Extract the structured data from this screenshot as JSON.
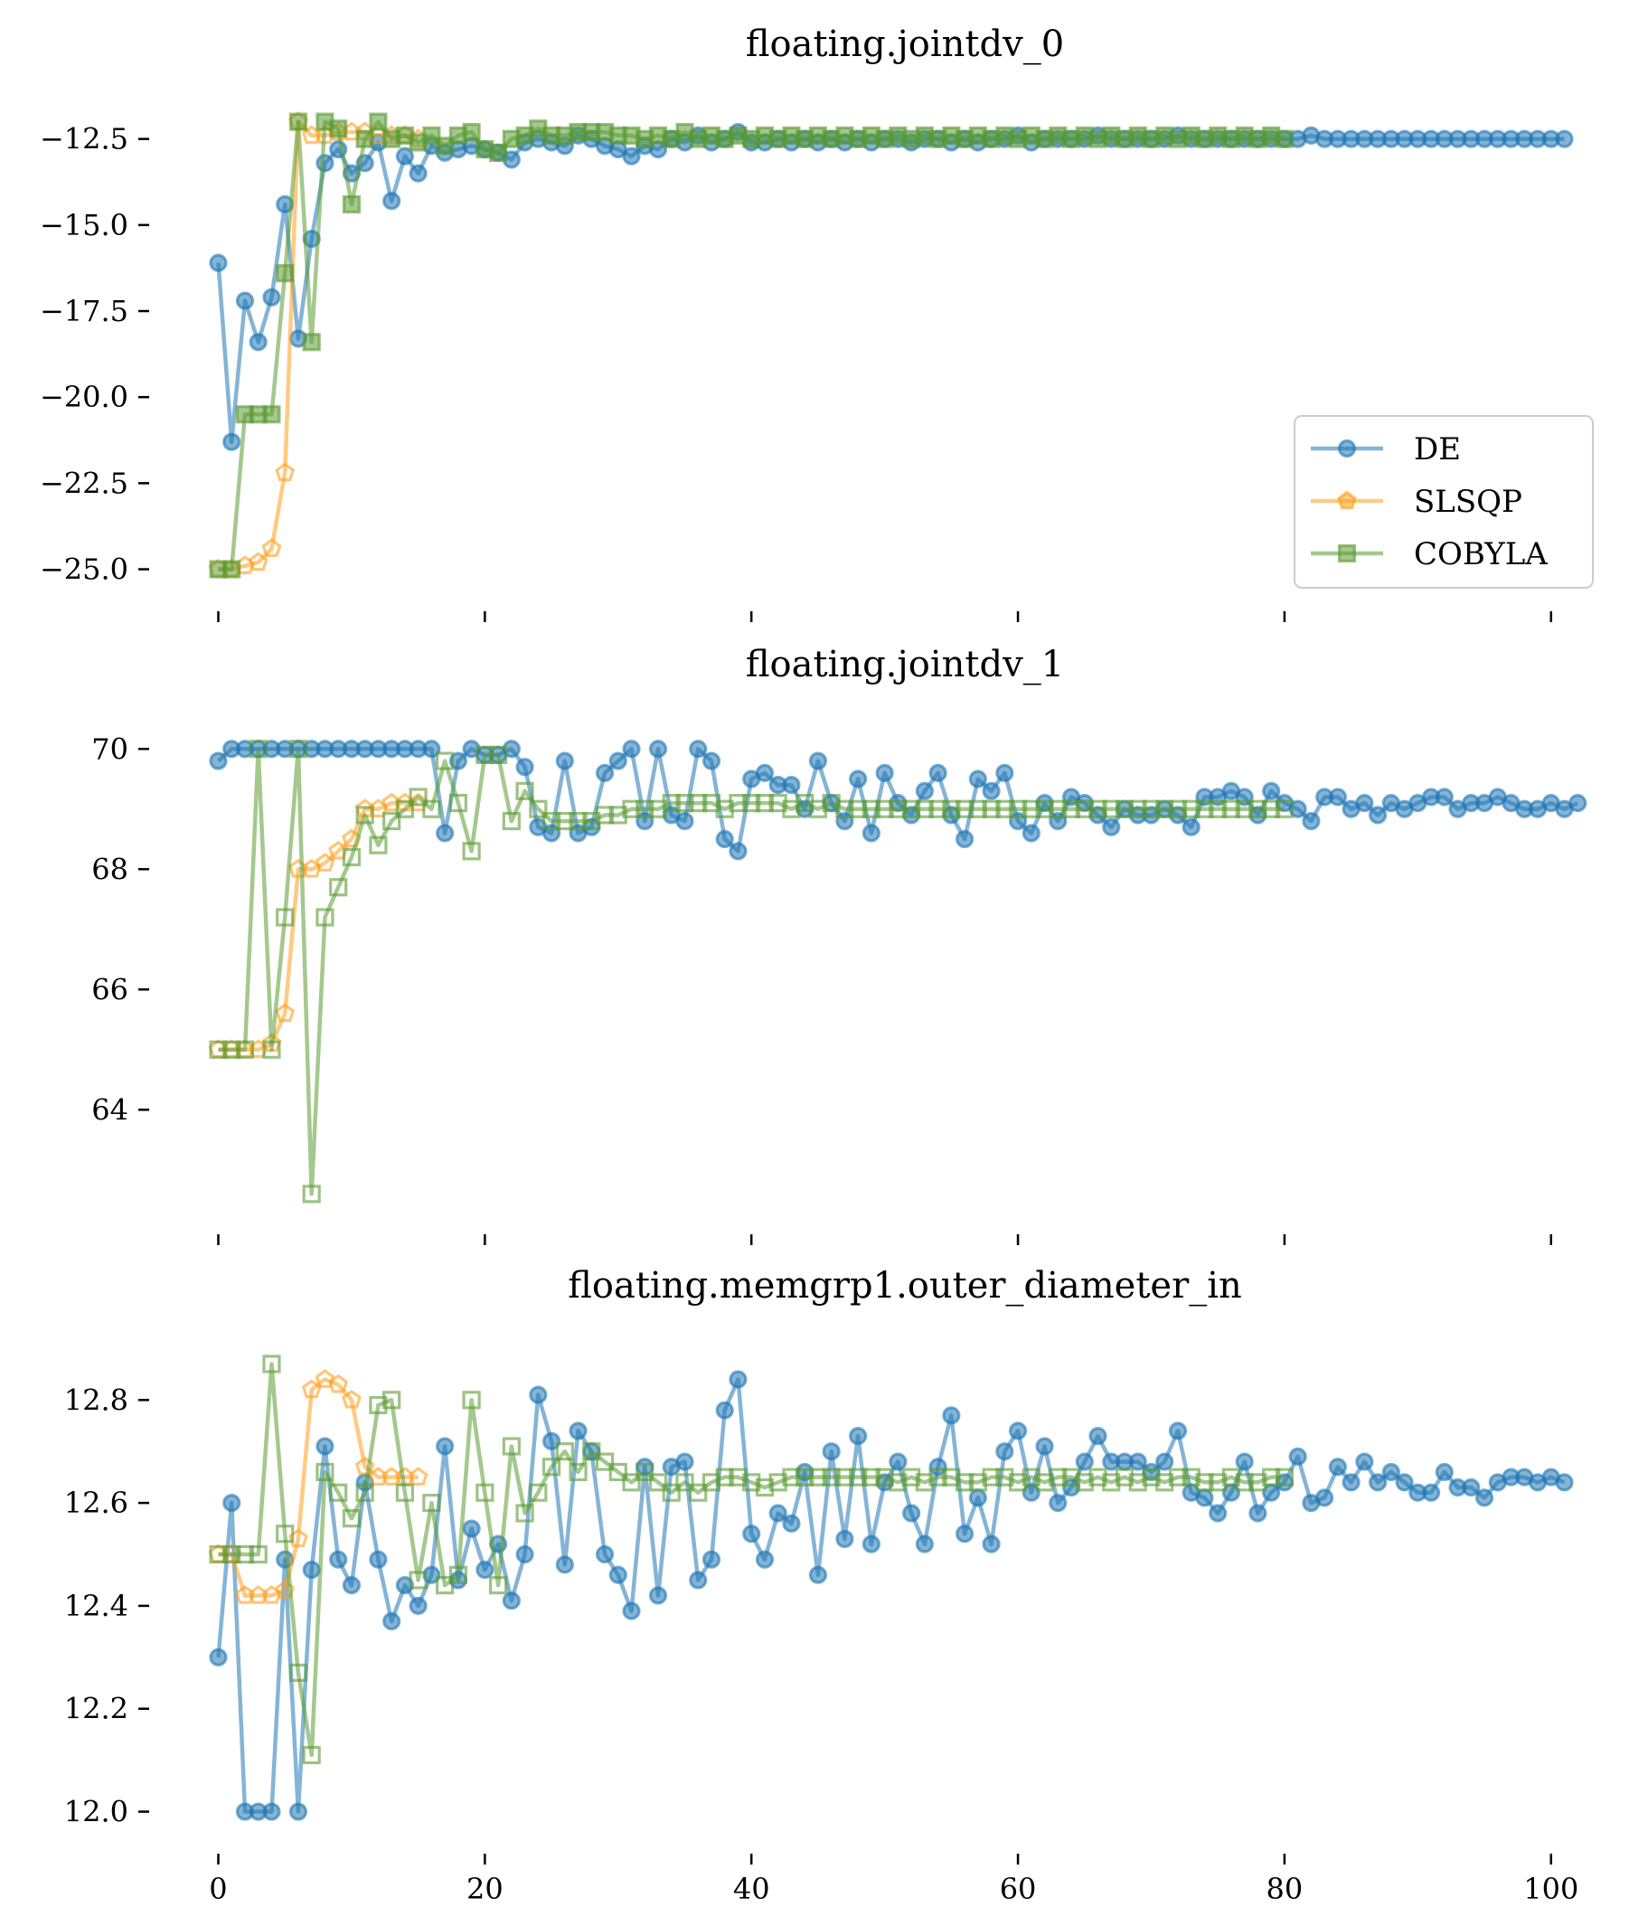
{
  "chart_data": [
    {
      "type": "line",
      "title": "floating.jointdv_0",
      "ylim": [
        -25.8,
        -11.3
      ],
      "yticks": [
        -25.0,
        -22.5,
        -20.0,
        -17.5,
        -15.0,
        -12.5
      ],
      "ytick_labels": [
        "−25.0",
        "−22.5",
        "−20.0",
        "−17.5",
        "−15.0",
        "−12.5"
      ],
      "xlim": [
        -2,
        103
      ],
      "xticks": [
        0,
        20,
        40,
        60,
        80,
        100
      ],
      "show_xtick_labels": false,
      "grid": false,
      "legend": {
        "placement": "lower-right",
        "entries": [
          "DE",
          "SLSQP",
          "COBYLA"
        ]
      },
      "series": [
        {
          "name": "DE",
          "color": "#1f77b4",
          "marker": "circle",
          "filled": true,
          "x_start": 0,
          "values": [
            -16.1,
            -21.3,
            -17.2,
            -18.4,
            -17.1,
            -14.4,
            -18.3,
            -15.4,
            -13.2,
            -12.8,
            -13.5,
            -13.2,
            -12.6,
            -14.3,
            -13.0,
            -13.5,
            -12.7,
            -12.9,
            -12.8,
            -12.7,
            -12.8,
            -12.9,
            -13.1,
            -12.6,
            -12.5,
            -12.6,
            -12.7,
            -12.4,
            -12.5,
            -12.7,
            -12.8,
            -13.0,
            -12.7,
            -12.8,
            -12.5,
            -12.6,
            -12.4,
            -12.6,
            -12.5,
            -12.3,
            -12.6,
            -12.6,
            -12.5,
            -12.6,
            -12.5,
            -12.6,
            -12.5,
            -12.6,
            -12.5,
            -12.6,
            -12.5,
            -12.5,
            -12.6,
            -12.5,
            -12.5,
            -12.6,
            -12.5,
            -12.6,
            -12.5,
            -12.5,
            -12.4,
            -12.6,
            -12.5,
            -12.5,
            -12.5,
            -12.5,
            -12.4,
            -12.5,
            -12.5,
            -12.5,
            -12.5,
            -12.5,
            -12.4,
            -12.5,
            -12.5,
            -12.5,
            -12.5,
            -12.5,
            -12.5,
            -12.5,
            -12.5,
            -12.5,
            -12.4,
            -12.5,
            -12.5,
            -12.5,
            -12.5,
            -12.5,
            -12.5,
            -12.5,
            -12.5,
            -12.5,
            -12.5,
            -12.5,
            -12.5,
            -12.5,
            -12.5,
            -12.5,
            -12.5,
            -12.5,
            -12.5,
            -12.5
          ]
        },
        {
          "name": "SLSQP",
          "color": "#ff9f1c",
          "marker": "pentagon",
          "filled": false,
          "x_start": 0,
          "values": [
            -25.0,
            -25.0,
            -24.9,
            -24.8,
            -24.4,
            -22.2,
            -12.0,
            -12.4,
            -12.4,
            -12.3,
            -12.3,
            -12.3,
            -12.4,
            -12.4,
            -12.4,
            -12.5
          ]
        },
        {
          "name": "COBYLA",
          "color": "#5a9a32",
          "marker": "square",
          "filled": true,
          "x_start": 0,
          "values": [
            -25.0,
            -25.0,
            -20.5,
            -20.5,
            -20.5,
            -16.4,
            -12.0,
            -18.4,
            -12.0,
            -12.2,
            -14.4,
            -12.5,
            -12.0,
            -12.5,
            -12.4,
            -12.6,
            -12.4,
            -12.7,
            -12.4,
            -12.3,
            -12.8,
            -12.9,
            -12.5,
            -12.4,
            -12.2,
            -12.4,
            -12.4,
            -12.3,
            -12.3,
            -12.3,
            -12.4,
            -12.4,
            -12.5,
            -12.4,
            -12.5,
            -12.3,
            -12.5,
            -12.4,
            -12.5,
            -12.4,
            -12.5,
            -12.4,
            -12.5,
            -12.4,
            -12.5,
            -12.4,
            -12.5,
            -12.4,
            -12.5,
            -12.4,
            -12.5,
            -12.4,
            -12.5,
            -12.4,
            -12.5,
            -12.4,
            -12.5,
            -12.4,
            -12.5,
            -12.4,
            -12.5,
            -12.4,
            -12.5,
            -12.4,
            -12.5,
            -12.4,
            -12.5,
            -12.4,
            -12.5,
            -12.4,
            -12.5,
            -12.4,
            -12.5,
            -12.4,
            -12.5,
            -12.4,
            -12.5,
            -12.4,
            -12.5,
            -12.4,
            -12.5
          ]
        }
      ]
    },
    {
      "type": "line",
      "title": "floating.jointdv_1",
      "ylim": [
        62.2,
        70.5
      ],
      "yticks": [
        64,
        66,
        68,
        70
      ],
      "ytick_labels": [
        "64",
        "66",
        "68",
        "70"
      ],
      "xlim": [
        -2,
        103
      ],
      "xticks": [
        0,
        20,
        40,
        60,
        80,
        100
      ],
      "show_xtick_labels": false,
      "grid": false,
      "series": [
        {
          "name": "DE",
          "color": "#1f77b4",
          "marker": "circle",
          "filled": true,
          "x_start": 0,
          "values": [
            69.8,
            70.0,
            70.0,
            70.0,
            70.0,
            70.0,
            70.0,
            70.0,
            70.0,
            70.0,
            70.0,
            70.0,
            70.0,
            70.0,
            70.0,
            70.0,
            70.0,
            68.6,
            69.8,
            70.0,
            69.9,
            69.9,
            70.0,
            69.7,
            68.7,
            68.6,
            69.8,
            68.6,
            68.7,
            69.6,
            69.8,
            70.0,
            68.8,
            70.0,
            68.9,
            68.8,
            70.0,
            69.8,
            68.5,
            68.3,
            69.5,
            69.6,
            69.4,
            69.4,
            69.0,
            69.8,
            69.1,
            68.8,
            69.5,
            68.6,
            69.6,
            69.1,
            68.9,
            69.3,
            69.6,
            68.9,
            68.5,
            69.5,
            69.3,
            69.6,
            68.8,
            68.6,
            69.1,
            68.8,
            69.2,
            69.1,
            68.9,
            68.7,
            69.0,
            68.9,
            68.9,
            69.0,
            68.9,
            68.7,
            69.2,
            69.2,
            69.3,
            69.2,
            68.9,
            69.3,
            69.1,
            69.0,
            68.8,
            69.2,
            69.2,
            69.0,
            69.1,
            68.9,
            69.1,
            69.0,
            69.1,
            69.2,
            69.2,
            69.0,
            69.1,
            69.1,
            69.2,
            69.1,
            69.0,
            69.0,
            69.1,
            69.0,
            69.1
          ]
        },
        {
          "name": "SLSQP",
          "color": "#ff9f1c",
          "marker": "pentagon",
          "filled": false,
          "x_start": 0,
          "values": [
            65.0,
            65.0,
            65.0,
            65.0,
            65.1,
            65.6,
            68.0,
            68.0,
            68.1,
            68.3,
            68.5,
            69.0,
            69.0,
            69.1,
            69.1,
            69.1
          ]
        },
        {
          "name": "COBYLA",
          "color": "#5a9a32",
          "marker": "square",
          "filled": false,
          "x_start": 0,
          "values": [
            65.0,
            65.0,
            65.0,
            70.0,
            65.0,
            67.2,
            70.0,
            62.6,
            67.2,
            67.7,
            68.2,
            68.9,
            68.4,
            68.8,
            69.0,
            69.2,
            69.0,
            69.8,
            69.1,
            68.3,
            69.9,
            69.9,
            68.8,
            69.3,
            69.0,
            68.8,
            68.8,
            68.8,
            68.8,
            68.9,
            68.9,
            69.0,
            69.0,
            69.0,
            69.1,
            69.1,
            69.1,
            69.1,
            69.0,
            69.1,
            69.1,
            69.1,
            69.1,
            69.0,
            69.1,
            69.0,
            69.1,
            69.0,
            69.0,
            69.0,
            69.0,
            69.0,
            69.0,
            69.0,
            69.0,
            69.0,
            69.0,
            69.0,
            69.0,
            69.0,
            69.0,
            69.0,
            69.0,
            69.0,
            69.0,
            69.0,
            69.0,
            69.0,
            69.0,
            69.0,
            69.0,
            69.0,
            69.0,
            69.0,
            69.0,
            69.0,
            69.0,
            69.0,
            69.0,
            69.0,
            69.0
          ]
        }
      ]
    },
    {
      "type": "line",
      "title": "floating.memgrp1.outer_diameter_in",
      "ylim": [
        11.95,
        12.92
      ],
      "yticks": [
        12.0,
        12.2,
        12.4,
        12.6,
        12.8
      ],
      "ytick_labels": [
        "12.0",
        "12.2",
        "12.4",
        "12.6",
        "12.8"
      ],
      "xlim": [
        -2,
        103
      ],
      "xticks": [
        0,
        20,
        40,
        60,
        80,
        100
      ],
      "xtick_labels": [
        "0",
        "20",
        "40",
        "60",
        "80",
        "100"
      ],
      "show_xtick_labels": true,
      "grid": false,
      "series": [
        {
          "name": "DE",
          "color": "#1f77b4",
          "marker": "circle",
          "filled": true,
          "x_start": 0,
          "values": [
            12.3,
            12.6,
            12.0,
            12.0,
            12.0,
            12.49,
            12.0,
            12.47,
            12.71,
            12.49,
            12.44,
            12.64,
            12.49,
            12.37,
            12.44,
            12.4,
            12.46,
            12.71,
            12.45,
            12.55,
            12.47,
            12.52,
            12.41,
            12.5,
            12.81,
            12.72,
            12.48,
            12.74,
            12.7,
            12.5,
            12.46,
            12.39,
            12.67,
            12.42,
            12.67,
            12.68,
            12.45,
            12.49,
            12.78,
            12.84,
            12.54,
            12.49,
            12.58,
            12.56,
            12.66,
            12.46,
            12.7,
            12.53,
            12.73,
            12.52,
            12.64,
            12.68,
            12.58,
            12.52,
            12.67,
            12.77,
            12.54,
            12.61,
            12.52,
            12.7,
            12.74,
            12.62,
            12.71,
            12.6,
            12.63,
            12.68,
            12.73,
            12.68,
            12.68,
            12.68,
            12.66,
            12.68,
            12.74,
            12.62,
            12.61,
            12.58,
            12.62,
            12.68,
            12.58,
            12.62,
            12.64,
            12.69,
            12.6,
            12.61,
            12.67,
            12.64,
            12.68,
            12.64,
            12.66,
            12.64,
            12.62,
            12.62,
            12.66,
            12.63,
            12.63,
            12.61,
            12.64,
            12.65,
            12.65,
            12.64,
            12.65,
            12.64
          ]
        },
        {
          "name": "SLSQP",
          "color": "#ff9f1c",
          "marker": "pentagon",
          "filled": false,
          "x_start": 0,
          "values": [
            12.5,
            12.5,
            12.42,
            12.42,
            12.42,
            12.43,
            12.53,
            12.82,
            12.84,
            12.83,
            12.8,
            12.67,
            12.65,
            12.65,
            12.65,
            12.65
          ]
        },
        {
          "name": "COBYLA",
          "color": "#5a9a32",
          "marker": "square",
          "filled": false,
          "x_start": 0,
          "values": [
            12.5,
            12.5,
            12.5,
            12.5,
            12.87,
            12.54,
            12.27,
            12.11,
            12.66,
            12.62,
            12.57,
            12.62,
            12.79,
            12.8,
            12.62,
            12.45,
            12.6,
            12.44,
            12.46,
            12.8,
            12.62,
            12.44,
            12.71,
            12.58,
            12.62,
            12.67,
            12.7,
            12.66,
            12.7,
            12.68,
            12.66,
            12.64,
            12.66,
            12.64,
            12.62,
            12.64,
            12.62,
            12.64,
            12.65,
            12.65,
            12.64,
            12.63,
            12.64,
            12.65,
            12.65,
            12.65,
            12.65,
            12.65,
            12.65,
            12.65,
            12.65,
            12.64,
            12.65,
            12.64,
            12.65,
            12.65,
            12.64,
            12.64,
            12.65,
            12.65,
            12.64,
            12.65,
            12.64,
            12.65,
            12.65,
            12.64,
            12.65,
            12.64,
            12.65,
            12.64,
            12.65,
            12.64,
            12.65,
            12.65,
            12.64,
            12.64,
            12.65,
            12.64,
            12.64,
            12.65,
            12.65
          ]
        }
      ]
    }
  ]
}
